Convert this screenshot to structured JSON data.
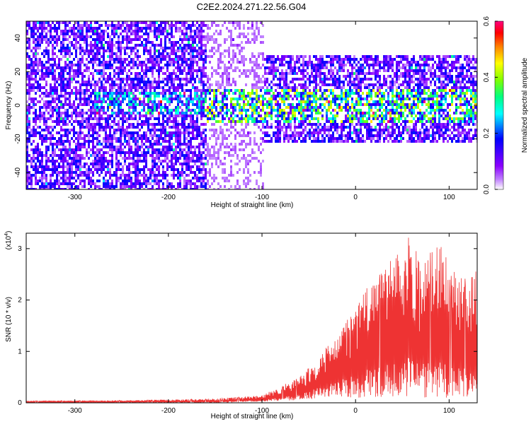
{
  "title": "C2E2.2024.271.22.56.G04",
  "chart_data": [
    {
      "type": "heatmap",
      "name": "spectrogram",
      "xlabel": "Height of straight line (km)",
      "ylabel": "Frequency (Hz)",
      "xlim": [
        -352,
        130
      ],
      "ylim": [
        -50,
        50
      ],
      "x_ticks": [
        -300,
        -200,
        -100,
        0,
        100
      ],
      "y_ticks": [
        -40,
        -20,
        0,
        20,
        40
      ],
      "colorbar": {
        "label": "Normalized spectral amplitude",
        "range": [
          0.0,
          0.6
        ],
        "ticks": [
          0.0,
          0.2,
          0.4,
          0.6
        ],
        "colormap": [
          "#ffffff",
          "#8a00ff",
          "#0000ff",
          "#00ffff",
          "#00ff00",
          "#ffff00",
          "#ff8000",
          "#ff0000",
          "#ff0080"
        ]
      },
      "regions": [
        {
          "x_range": [
            -352,
            -160
          ],
          "freq_range": [
            -50,
            50
          ],
          "amplitude": 0.1
        },
        {
          "x_range": [
            -160,
            -100
          ],
          "freq_range": [
            -50,
            50
          ],
          "amplitude": 0.03
        },
        {
          "x_range": [
            -280,
            -160
          ],
          "freq_range": [
            -4,
            8
          ],
          "amplitude": 0.18
        },
        {
          "x_range": [
            -160,
            130
          ],
          "freq_range": [
            -10,
            10
          ],
          "amplitude": 0.25
        },
        {
          "x_range": [
            -100,
            130
          ],
          "freq_range": [
            -22,
            30
          ],
          "amplitude": 0.1
        }
      ]
    },
    {
      "type": "line",
      "name": "snr",
      "xlabel": "Height of straight line (km)",
      "ylabel": "SNR (10 * v/v)",
      "scale_label": "(x10",
      "scale_exp": "4",
      "scale_close": ")",
      "xlim": [
        -352,
        130
      ],
      "ylim": [
        0,
        3.3
      ],
      "x_ticks": [
        -300,
        -200,
        -100,
        0,
        100
      ],
      "y_ticks": [
        0,
        1,
        2,
        3
      ],
      "color": "#ee3333",
      "envelope": {
        "x": [
          -352,
          -250,
          -150,
          -100,
          -60,
          -30,
          0,
          20,
          40,
          55,
          70,
          90,
          110,
          130
        ],
        "upper": [
          0.04,
          0.05,
          0.08,
          0.15,
          0.5,
          1.1,
          1.9,
          2.5,
          2.8,
          3.3,
          2.8,
          3.1,
          2.4,
          2.6
        ],
        "lower": [
          0.0,
          0.0,
          0.0,
          0.02,
          0.05,
          0.1,
          0.1,
          0.1,
          0.1,
          0.1,
          0.1,
          0.1,
          0.1,
          0.1
        ]
      }
    }
  ]
}
